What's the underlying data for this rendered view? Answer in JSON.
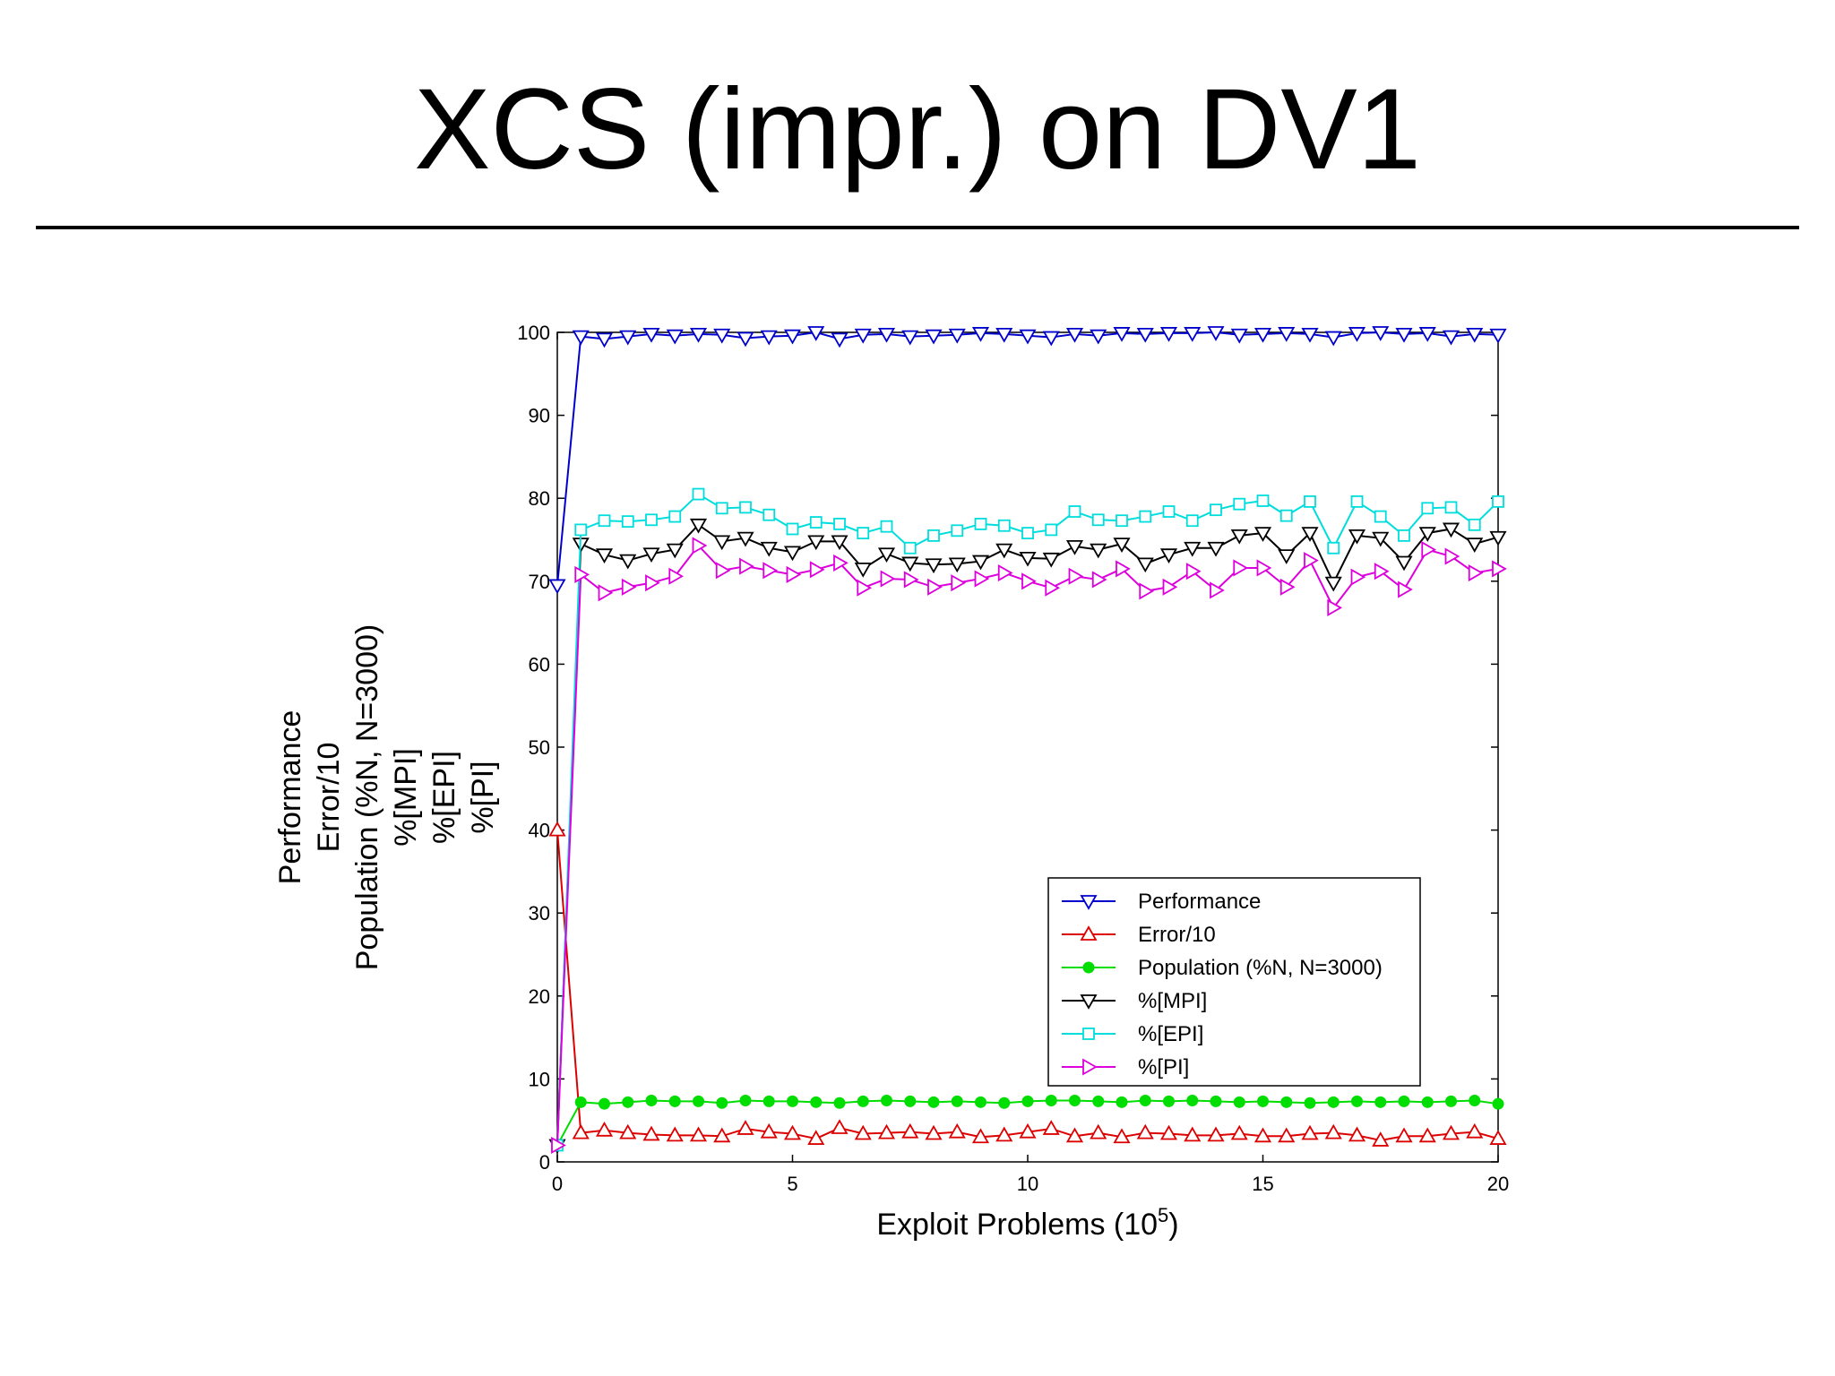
{
  "slide": {
    "title": "XCS (impr.) on DV1"
  },
  "chart_data": {
    "type": "line",
    "xlabel": "Exploit Problems (10",
    "xlabel_sup": "5",
    "xlabel_close": ")",
    "ylabel_lines": [
      "Performance",
      "Error/10",
      "Population (%N, N=3000)",
      "%[MPI]",
      "%[EPI]",
      "%[PI]"
    ],
    "xlim": [
      0,
      20
    ],
    "ylim": [
      0,
      100
    ],
    "xticks": [
      0,
      5,
      10,
      15,
      20
    ],
    "yticks": [
      0,
      10,
      20,
      30,
      40,
      50,
      60,
      70,
      80,
      90,
      100
    ],
    "grid": false,
    "legend_position": "bottom-right",
    "x": [
      0,
      0.5,
      1,
      1.5,
      2,
      2.5,
      3,
      3.5,
      4,
      4.5,
      5,
      5.5,
      6,
      6.5,
      7,
      7.5,
      8,
      8.5,
      9,
      9.5,
      10,
      10.5,
      11,
      11.5,
      12,
      12.5,
      13,
      13.5,
      14,
      14.5,
      15,
      15.5,
      16,
      16.5,
      17,
      17.5,
      18,
      18.5,
      19,
      19.5,
      20
    ],
    "series": [
      {
        "name": "Performance",
        "color": "#0000cc",
        "marker": "triangle-down",
        "values": [
          69.5,
          99.5,
          99.2,
          99.5,
          99.8,
          99.6,
          99.8,
          99.7,
          99.3,
          99.5,
          99.6,
          100,
          99.2,
          99.7,
          99.8,
          99.5,
          99.6,
          99.7,
          99.9,
          99.8,
          99.6,
          99.4,
          99.8,
          99.6,
          99.9,
          99.8,
          99.9,
          99.9,
          100,
          99.7,
          99.8,
          99.9,
          99.8,
          99.4,
          99.9,
          100,
          99.8,
          99.9,
          99.5,
          99.8,
          99.7
        ]
      },
      {
        "name": "Error/10",
        "color": "#dd0000",
        "marker": "triangle-up",
        "values": [
          40,
          3.5,
          3.8,
          3.5,
          3.3,
          3.2,
          3.2,
          3.1,
          4.0,
          3.6,
          3.4,
          2.8,
          4.1,
          3.4,
          3.5,
          3.6,
          3.4,
          3.6,
          3.0,
          3.2,
          3.6,
          4.0,
          3.1,
          3.5,
          3.0,
          3.5,
          3.4,
          3.2,
          3.2,
          3.4,
          3.1,
          3.1,
          3.4,
          3.5,
          3.2,
          2.6,
          3.1,
          3.1,
          3.4,
          3.6,
          2.8
        ]
      },
      {
        "name": "Population (%N, N=3000)",
        "color": "#00dd00",
        "marker": "dot",
        "values": [
          2,
          7.2,
          7.0,
          7.2,
          7.4,
          7.3,
          7.3,
          7.1,
          7.4,
          7.3,
          7.3,
          7.2,
          7.1,
          7.3,
          7.4,
          7.3,
          7.2,
          7.3,
          7.2,
          7.1,
          7.3,
          7.4,
          7.4,
          7.3,
          7.2,
          7.4,
          7.3,
          7.4,
          7.3,
          7.2,
          7.3,
          7.2,
          7.1,
          7.2,
          7.3,
          7.2,
          7.3,
          7.2,
          7.3,
          7.4,
          7.0
        ]
      },
      {
        "name": "%[MPI]",
        "color": "#000000",
        "marker": "triangle-down",
        "values": [
          2,
          74.5,
          73.2,
          72.5,
          73.3,
          73.8,
          76.8,
          74.8,
          75.2,
          74.0,
          73.5,
          74.8,
          74.8,
          71.5,
          73.3,
          72.2,
          72.0,
          72.1,
          72.4,
          73.8,
          72.8,
          72.7,
          74.2,
          73.8,
          74.5,
          72.1,
          73.2,
          74.0,
          74.0,
          75.5,
          75.8,
          73.1,
          75.8,
          69.8,
          75.5,
          75.2,
          72.3,
          75.8,
          76.3,
          74.5,
          75.3
        ]
      },
      {
        "name": "%[EPI]",
        "color": "#00dddd",
        "marker": "square",
        "values": [
          2,
          76.2,
          77.3,
          77.2,
          77.4,
          77.8,
          80.5,
          78.8,
          78.9,
          78.0,
          76.3,
          77.1,
          76.9,
          75.8,
          76.6,
          74.0,
          75.5,
          76.1,
          76.9,
          76.7,
          75.8,
          76.2,
          78.4,
          77.4,
          77.3,
          77.8,
          78.4,
          77.3,
          78.6,
          79.3,
          79.7,
          77.9,
          79.6,
          74.0,
          79.6,
          77.8,
          75.5,
          78.8,
          78.9,
          76.8,
          79.6
        ]
      },
      {
        "name": "%[PI]",
        "color": "#dd00dd",
        "marker": "triangle-right",
        "values": [
          2,
          70.8,
          68.6,
          69.3,
          69.8,
          70.6,
          74.3,
          71.3,
          71.8,
          71.3,
          70.8,
          71.4,
          72.2,
          69.2,
          70.3,
          70.2,
          69.3,
          69.8,
          70.3,
          71.0,
          70.0,
          69.2,
          70.6,
          70.2,
          71.5,
          68.8,
          69.3,
          71.2,
          68.9,
          71.6,
          71.6,
          69.3,
          72.5,
          66.8,
          70.5,
          71.2,
          69.0,
          73.8,
          73.0,
          71.0,
          71.5
        ]
      }
    ]
  }
}
